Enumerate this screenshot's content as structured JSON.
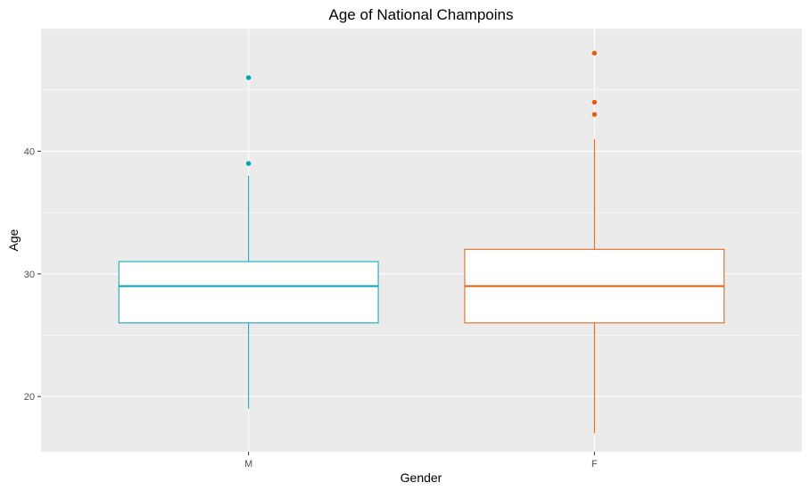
{
  "chart_data": {
    "type": "boxplot",
    "title": "Age of National Champoins",
    "xlabel": "Gender",
    "ylabel": "Age",
    "ylim": [
      15.5,
      50
    ],
    "yticks": [
      20,
      30,
      40
    ],
    "grid": true,
    "legend": "none",
    "categories": [
      "M",
      "F"
    ],
    "series": [
      {
        "category": "M",
        "color": "#00A5B8",
        "whisker_low": 19,
        "q1": 26,
        "median": 29,
        "q3": 31,
        "whisker_high": 38,
        "outliers": [
          39,
          46
        ]
      },
      {
        "category": "F",
        "color": "#E8590C",
        "whisker_low": 17,
        "q1": 26,
        "median": 29,
        "q3": 32,
        "whisker_high": 41,
        "outliers": [
          43,
          44,
          48
        ]
      }
    ]
  }
}
